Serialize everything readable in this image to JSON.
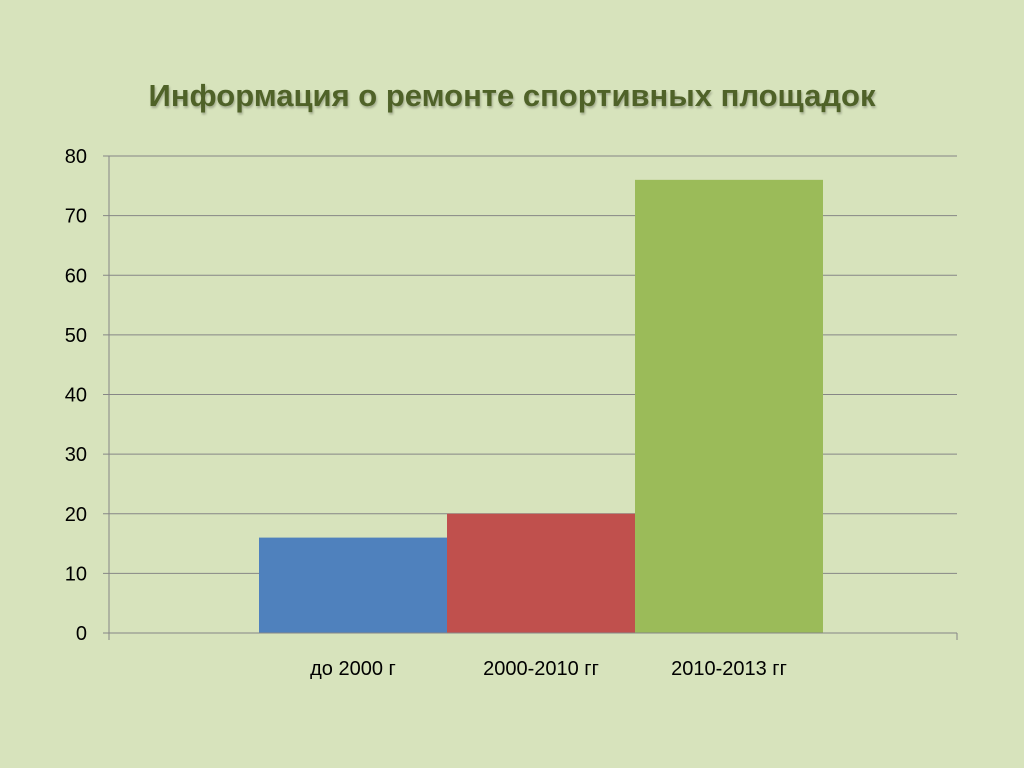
{
  "chart_data": {
    "type": "bar",
    "title": "Информация о ремонте спортивных площадок",
    "xlabel": "",
    "ylabel": "",
    "ylim": [
      0,
      80
    ],
    "yticks": [
      0,
      10,
      20,
      30,
      40,
      50,
      60,
      70,
      80
    ],
    "grid": true,
    "legend": "none",
    "series": [
      {
        "category": "до 2000 г",
        "value": 16,
        "color": "#4f81bd"
      },
      {
        "category": "2000-2010 гг",
        "value": 20,
        "color": "#c0504d"
      },
      {
        "category": "2010-2013 гг",
        "value": 76,
        "color": "#9bbb59"
      }
    ]
  },
  "colors": {
    "background": "#d7e3bc",
    "title": "#4f6228",
    "gridline": "#868686"
  }
}
